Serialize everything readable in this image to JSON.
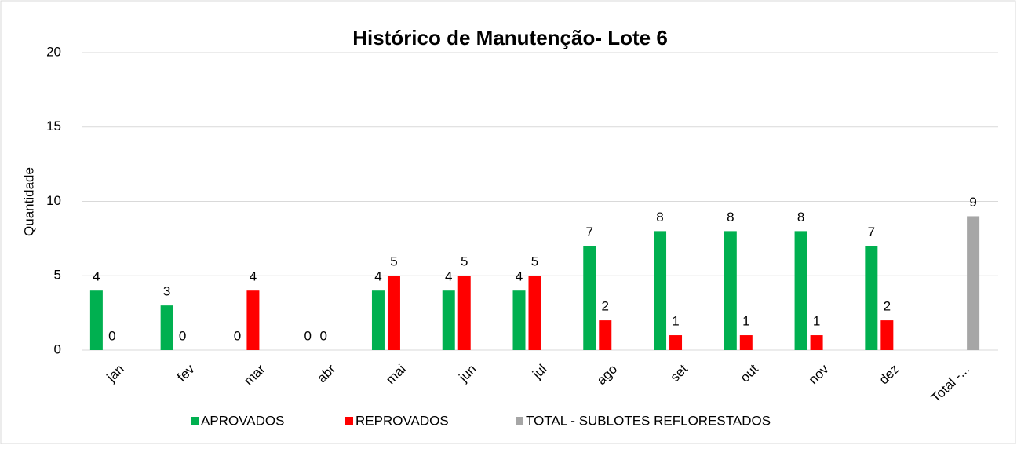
{
  "chart_data": {
    "type": "bar",
    "title": "Histórico de Manutenção- Lote 6",
    "y_label": "Quantidade",
    "categories": [
      "jan",
      "fev",
      "mar",
      "abr",
      "mai",
      "jun",
      "jul",
      "ago",
      "set",
      "out",
      "nov",
      "dez",
      "Total -..."
    ],
    "series": [
      {
        "name": "APROVADOS",
        "color": "#00b050",
        "values": [
          4,
          3,
          0,
          0,
          4,
          4,
          4,
          7,
          8,
          8,
          8,
          7,
          null
        ]
      },
      {
        "name": "REPROVADOS",
        "color": "#ff0000",
        "values": [
          0,
          0,
          4,
          0,
          5,
          5,
          5,
          2,
          1,
          1,
          1,
          2,
          null
        ]
      },
      {
        "name": "TOTAL - SUBLOTES REFLORESTADOS",
        "color": "#a6a6a6",
        "values": [
          null,
          null,
          null,
          null,
          null,
          null,
          null,
          null,
          null,
          null,
          null,
          null,
          9
        ]
      }
    ],
    "ylim": [
      0,
      20
    ],
    "yticks": [
      0,
      5,
      10,
      15,
      20
    ],
    "grid": true,
    "legend": "bottom"
  }
}
